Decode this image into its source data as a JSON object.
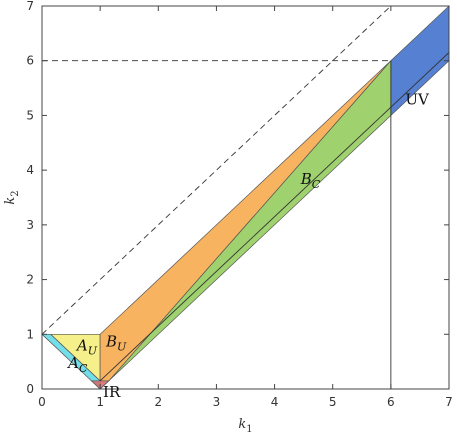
{
  "chart_data": {
    "type": "area",
    "xlabel": "k",
    "xlabel_sub": "1",
    "ylabel": "k",
    "ylabel_sub": "2",
    "xlim": [
      0,
      7
    ],
    "ylim": [
      0,
      7
    ],
    "xticks": [
      "0",
      "1",
      "2",
      "3",
      "4",
      "5",
      "6",
      "7"
    ],
    "yticks": [
      "0",
      "1",
      "2",
      "3",
      "4",
      "5",
      "6",
      "7"
    ],
    "grid": false,
    "reference_lines": [
      {
        "style": "dashed",
        "points": [
          [
            0,
            1
          ],
          [
            6,
            7
          ]
        ]
      },
      {
        "style": "dashed",
        "points": [
          [
            0,
            6
          ],
          [
            6,
            6
          ]
        ]
      },
      {
        "style": "solid",
        "points": [
          [
            6,
            0
          ],
          [
            6,
            6
          ]
        ]
      },
      {
        "style": "solid",
        "points": [
          [
            1,
            0.15
          ],
          [
            7,
            6.15
          ]
        ]
      }
    ],
    "regions": [
      {
        "key": "ac",
        "name": "A",
        "sub": "C",
        "color": "#5fd9e6",
        "polygon": [
          [
            0,
            1
          ],
          [
            0.15,
            1
          ],
          [
            1,
            0.15
          ],
          [
            1,
            0
          ]
        ],
        "label_at": [
          0.45,
          0.38
        ]
      },
      {
        "key": "au",
        "name": "A",
        "sub": "U",
        "color": "#f5ee7a",
        "polygon": [
          [
            0.15,
            1
          ],
          [
            1,
            1
          ],
          [
            1,
            0.15
          ]
        ],
        "label_at": [
          0.6,
          0.7
        ]
      },
      {
        "key": "ir",
        "name": "IR",
        "sub": "",
        "color": "#d66a6a",
        "polygon": [
          [
            0.85,
            0.15
          ],
          [
            1.15,
            0.15
          ],
          [
            1,
            0
          ]
        ],
        "label_at": [
          1.05,
          -0.15
        ]
      },
      {
        "key": "bu",
        "name": "B",
        "sub": "U",
        "color": "#f7a94a",
        "polygon": [
          [
            1,
            0.15
          ],
          [
            1,
            1
          ],
          [
            6,
            6
          ],
          [
            1.15,
            0.15
          ]
        ],
        "label_at": [
          1.1,
          0.78
        ]
      },
      {
        "key": "bc",
        "name": "B",
        "sub": "C",
        "color": "#92cc5a",
        "polygon": [
          [
            1,
            0
          ],
          [
            1.15,
            0.15
          ],
          [
            6,
            6
          ],
          [
            6,
            5
          ]
        ],
        "label_at": [
          4.45,
          3.75
        ]
      },
      {
        "key": "uv",
        "name": "UV",
        "sub": "",
        "color": "#3f6fcc",
        "polygon": [
          [
            6,
            5
          ],
          [
            6,
            6
          ],
          [
            6.15,
            6.15
          ],
          [
            7,
            7
          ],
          [
            7,
            6
          ]
        ],
        "label_at": [
          6.25,
          5.2
        ]
      }
    ]
  }
}
